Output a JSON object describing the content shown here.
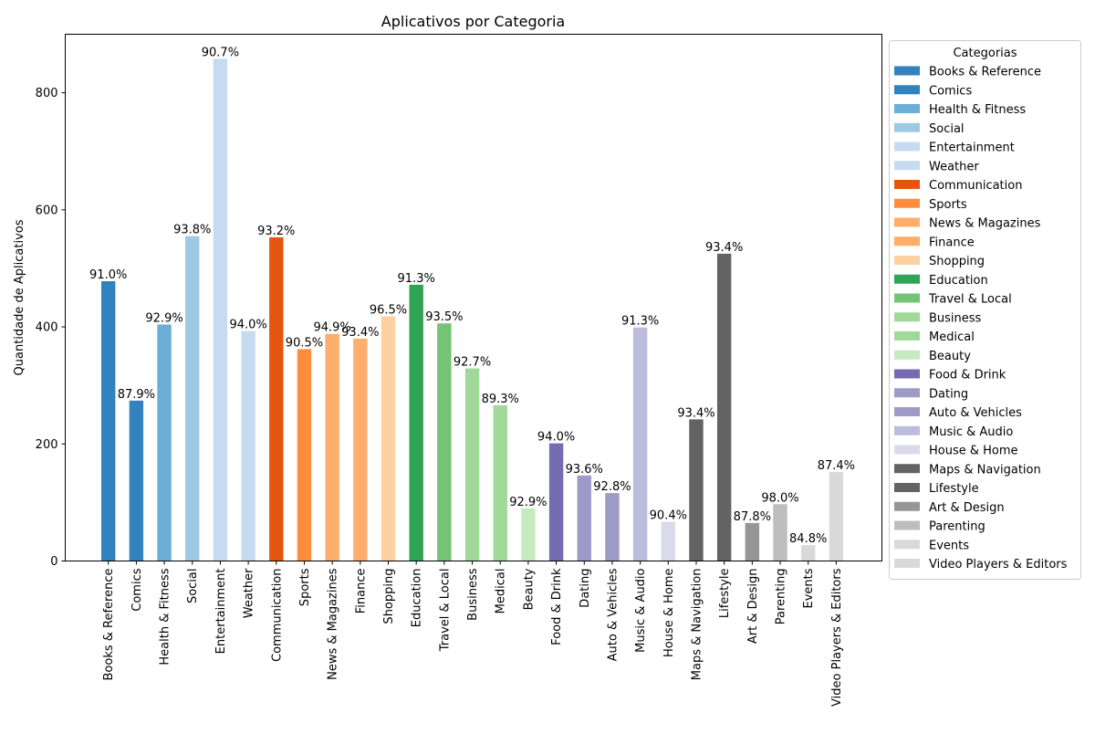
{
  "chart_data": {
    "type": "bar",
    "title": "Aplicativos por Categoria",
    "xlabel": "",
    "ylabel": "Quantidade de Aplicativos",
    "ylim": [
      0,
      900
    ],
    "yticks": [
      0,
      200,
      400,
      600,
      800
    ],
    "grid": false,
    "legend": {
      "title": "Categorias",
      "placement": "outside-right"
    },
    "categories": [
      "Books & Reference",
      "Comics",
      "Health & Fitness",
      "Social",
      "Entertainment",
      "Weather",
      "Communication",
      "Sports",
      "News & Magazines",
      "Finance",
      "Shopping",
      "Education",
      "Travel & Local",
      "Business",
      "Medical",
      "Beauty",
      "Food & Drink",
      "Dating",
      "Auto & Vehicles",
      "Music & Audio",
      "House & Home",
      "Maps & Navigation",
      "Lifestyle",
      "Art & Design",
      "Parenting",
      "Events",
      "Video Players & Editors"
    ],
    "values": [
      478,
      274,
      404,
      555,
      858,
      393,
      553,
      362,
      388,
      380,
      418,
      472,
      406,
      329,
      266,
      90,
      201,
      146,
      116,
      399,
      67,
      242,
      525,
      65,
      97,
      27,
      152
    ],
    "labels": [
      "91.0%",
      "87.9%",
      "92.9%",
      "93.8%",
      "90.7%",
      "94.0%",
      "93.2%",
      "90.5%",
      "94.9%",
      "93.4%",
      "96.5%",
      "91.3%",
      "93.5%",
      "92.7%",
      "89.3%",
      "92.9%",
      "94.0%",
      "93.6%",
      "92.8%",
      "91.3%",
      "90.4%",
      "93.4%",
      "93.4%",
      "87.8%",
      "98.0%",
      "84.8%",
      "87.4%"
    ],
    "colors": [
      "#3182bd",
      "#3182bd",
      "#6baed6",
      "#9ecae1",
      "#c6dbef",
      "#c6dbef",
      "#e6550d",
      "#fd8d3c",
      "#fdae6b",
      "#fdae6b",
      "#fdd0a2",
      "#31a354",
      "#74c476",
      "#a1d99b",
      "#a1d99b",
      "#c7e9c0",
      "#756bb1",
      "#9e9ac8",
      "#9e9ac8",
      "#bcbddc",
      "#dadaeb",
      "#636363",
      "#636363",
      "#969696",
      "#bdbdbd",
      "#d9d9d9",
      "#d9d9d9"
    ]
  }
}
